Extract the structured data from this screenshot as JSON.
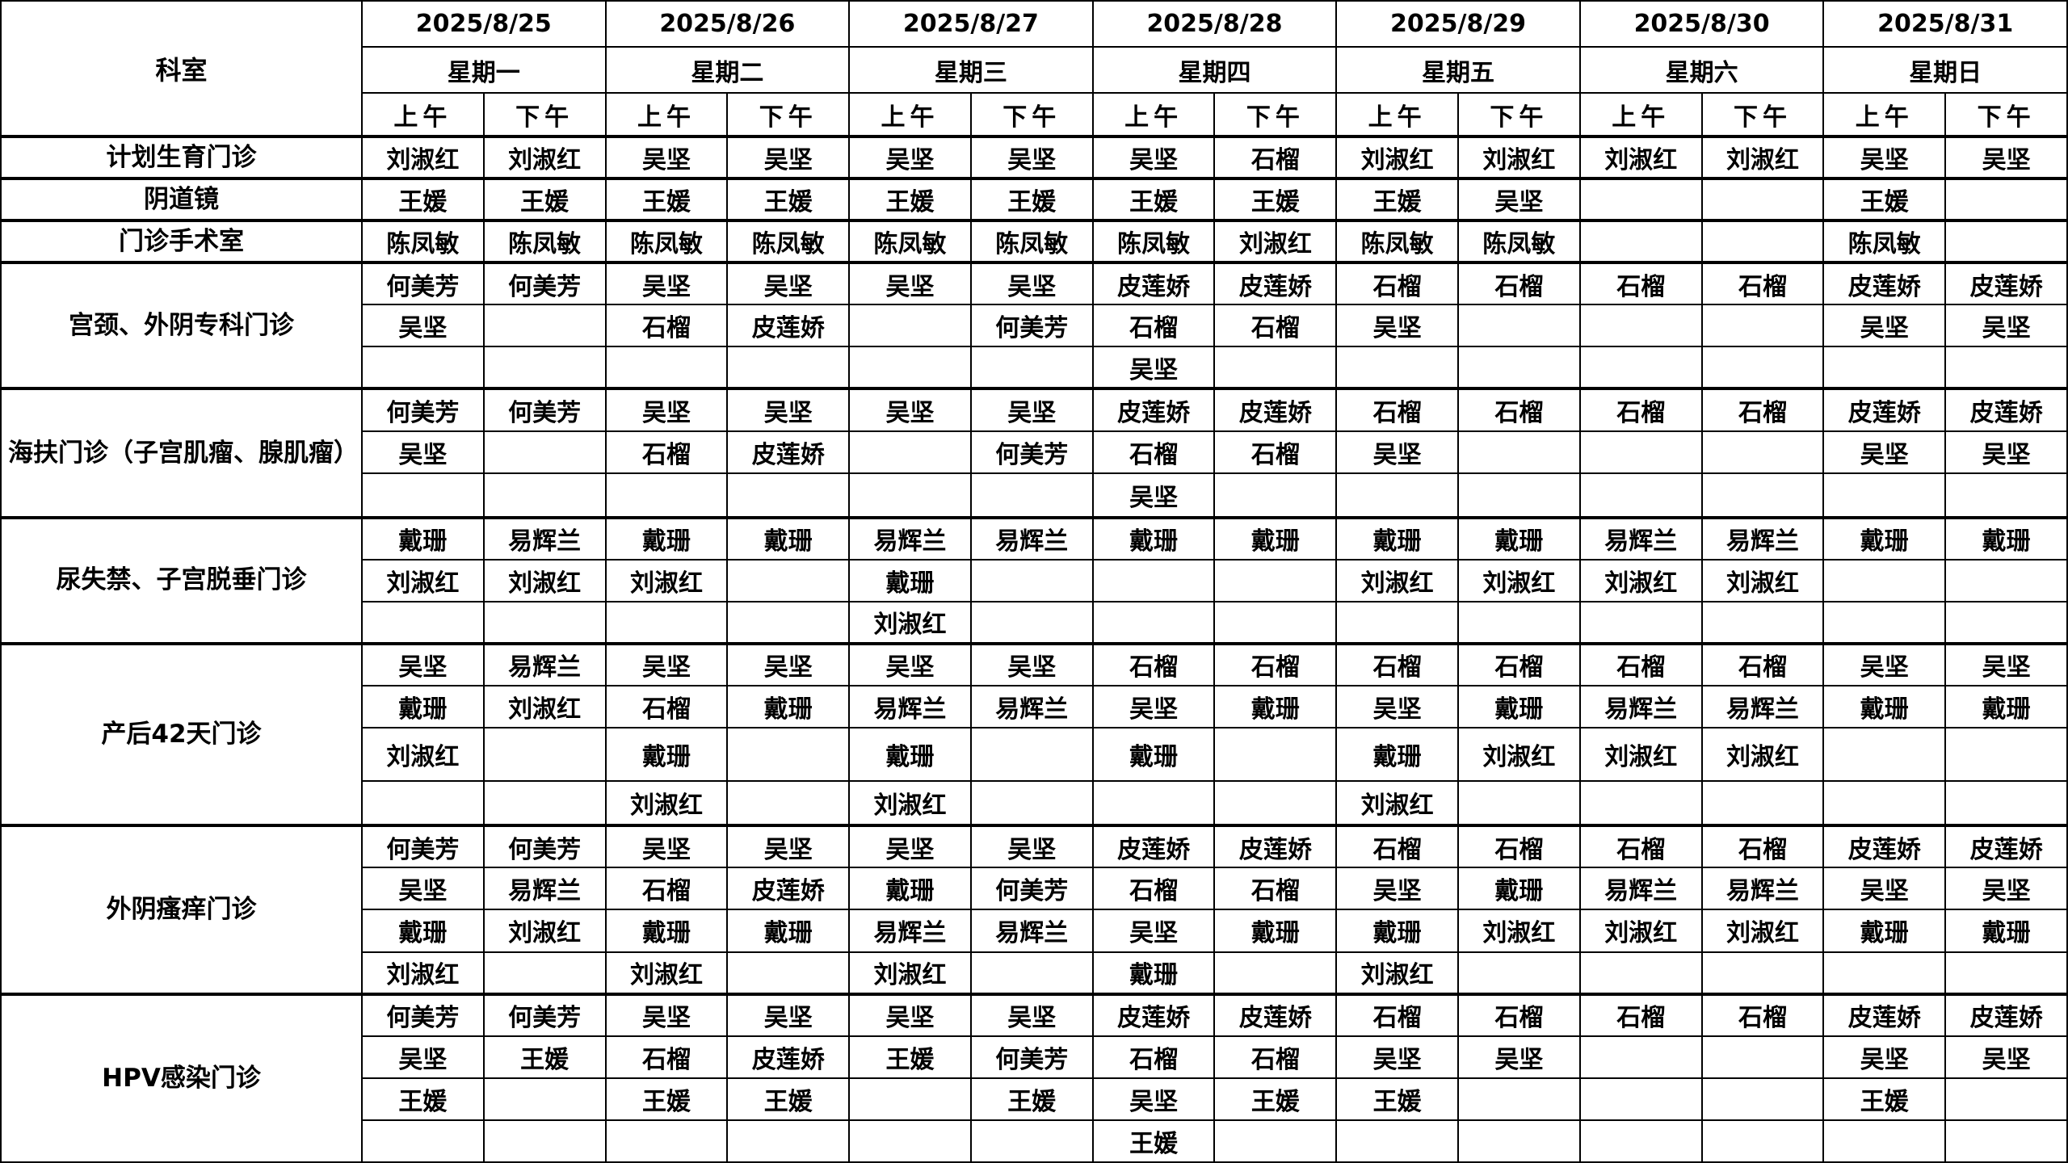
{
  "header": {
    "dept_label": "科室",
    "dates": [
      "2025/8/25",
      "2025/8/26",
      "2025/8/27",
      "2025/8/28",
      "2025/8/29",
      "2025/8/30",
      "2025/8/31"
    ],
    "weekdays": [
      "星期一",
      "星期二",
      "星期三",
      "星期四",
      "星期五",
      "星期六",
      "星期日"
    ],
    "am": "上午",
    "pm": "下午"
  },
  "departments": [
    {
      "name": "计划生育门诊",
      "rows": [
        [
          "刘淑红",
          "刘淑红",
          "吴坚",
          "吴坚",
          "吴坚",
          "吴坚",
          "吴坚",
          "石榴",
          "刘淑红",
          "刘淑红",
          "刘淑红",
          "刘淑红",
          "吴坚",
          "吴坚"
        ]
      ]
    },
    {
      "name": "阴道镜",
      "rows": [
        [
          "王媛",
          "王媛",
          "王媛",
          "王媛",
          "王媛",
          "王媛",
          "王媛",
          "王媛",
          "王媛",
          "吴坚",
          "",
          "",
          "王媛",
          ""
        ]
      ]
    },
    {
      "name": "门诊手术室",
      "rows": [
        [
          "陈凤敏",
          "陈凤敏",
          "陈凤敏",
          "陈凤敏",
          "陈凤敏",
          "陈凤敏",
          "陈凤敏",
          "刘淑红",
          "陈凤敏",
          "陈凤敏",
          "",
          "",
          "陈凤敏",
          ""
        ]
      ]
    },
    {
      "name": "宫颈、外阴专科门诊",
      "rows": [
        [
          "何美芳",
          "何美芳",
          "吴坚",
          "吴坚",
          "吴坚",
          "吴坚",
          "皮莲娇",
          "皮莲娇",
          "石榴",
          "石榴",
          "石榴",
          "石榴",
          "皮莲娇",
          "皮莲娇"
        ],
        [
          "吴坚",
          "",
          "石榴",
          "皮莲娇",
          "",
          "何美芳",
          "石榴",
          "石榴",
          "吴坚",
          "",
          "",
          "",
          "吴坚",
          "吴坚"
        ],
        [
          "",
          "",
          "",
          "",
          "",
          "",
          "吴坚",
          "",
          "",
          "",
          "",
          "",
          "",
          ""
        ]
      ]
    },
    {
      "name": "海扶门诊（子宫肌瘤、腺肌瘤）",
      "rows": [
        [
          "何美芳",
          "何美芳",
          "吴坚",
          "吴坚",
          "吴坚",
          "吴坚",
          "皮莲娇",
          "皮莲娇",
          "石榴",
          "石榴",
          "石榴",
          "石榴",
          "皮莲娇",
          "皮莲娇"
        ],
        [
          "吴坚",
          "",
          "石榴",
          "皮莲娇",
          "",
          "何美芳",
          "石榴",
          "石榴",
          "吴坚",
          "",
          "",
          "",
          "吴坚",
          "吴坚"
        ],
        [
          "",
          "",
          "",
          "",
          "",
          "",
          "吴坚",
          "",
          "",
          "",
          "",
          "",
          "",
          ""
        ]
      ]
    },
    {
      "name": "尿失禁、子宫脱垂门诊",
      "rows": [
        [
          "戴珊",
          "易辉兰",
          "戴珊",
          "戴珊",
          "易辉兰",
          "易辉兰",
          "戴珊",
          "戴珊",
          "戴珊",
          "戴珊",
          "易辉兰",
          "易辉兰",
          "戴珊",
          "戴珊"
        ],
        [
          "刘淑红",
          "刘淑红",
          "刘淑红",
          "",
          "戴珊",
          "",
          "",
          "",
          "刘淑红",
          "刘淑红",
          "刘淑红",
          "刘淑红",
          "",
          ""
        ],
        [
          "",
          "",
          "",
          "",
          "刘淑红",
          "",
          "",
          "",
          "",
          "",
          "",
          "",
          "",
          ""
        ]
      ]
    },
    {
      "name": "产后42天门诊",
      "rows": [
        [
          "吴坚",
          "易辉兰",
          "吴坚",
          "吴坚",
          "吴坚",
          "吴坚",
          "石榴",
          "石榴",
          "石榴",
          "石榴",
          "石榴",
          "石榴",
          "吴坚",
          "吴坚"
        ],
        [
          "戴珊",
          "刘淑红",
          "石榴",
          "戴珊",
          "易辉兰",
          "易辉兰",
          "吴坚",
          "戴珊",
          "吴坚",
          "戴珊",
          "易辉兰",
          "易辉兰",
          "戴珊",
          "戴珊"
        ],
        [
          "刘淑红",
          "",
          "戴珊",
          "",
          "戴珊",
          "",
          "戴珊",
          "",
          "戴珊",
          "刘淑红",
          "刘淑红",
          "刘淑红",
          "",
          ""
        ],
        [
          "",
          "",
          "刘淑红",
          "",
          "刘淑红",
          "",
          "",
          "",
          "刘淑红",
          "",
          "",
          "",
          "",
          ""
        ]
      ]
    },
    {
      "name": "外阴瘙痒门诊",
      "rows": [
        [
          "何美芳",
          "何美芳",
          "吴坚",
          "吴坚",
          "吴坚",
          "吴坚",
          "皮莲娇",
          "皮莲娇",
          "石榴",
          "石榴",
          "石榴",
          "石榴",
          "皮莲娇",
          "皮莲娇"
        ],
        [
          "吴坚",
          "易辉兰",
          "石榴",
          "皮莲娇",
          "戴珊",
          "何美芳",
          "石榴",
          "石榴",
          "吴坚",
          "戴珊",
          "易辉兰",
          "易辉兰",
          "吴坚",
          "吴坚"
        ],
        [
          "戴珊",
          "刘淑红",
          "戴珊",
          "戴珊",
          "易辉兰",
          "易辉兰",
          "吴坚",
          "戴珊",
          "戴珊",
          "刘淑红",
          "刘淑红",
          "刘淑红",
          "戴珊",
          "戴珊"
        ],
        [
          "刘淑红",
          "",
          "刘淑红",
          "",
          "刘淑红",
          "",
          "戴珊",
          "",
          "刘淑红",
          "",
          "",
          "",
          "",
          ""
        ]
      ]
    },
    {
      "name": "HPV感染门诊",
      "rows": [
        [
          "何美芳",
          "何美芳",
          "吴坚",
          "吴坚",
          "吴坚",
          "吴坚",
          "皮莲娇",
          "皮莲娇",
          "石榴",
          "石榴",
          "石榴",
          "石榴",
          "皮莲娇",
          "皮莲娇"
        ],
        [
          "吴坚",
          "王媛",
          "石榴",
          "皮莲娇",
          "王媛",
          "何美芳",
          "石榴",
          "石榴",
          "吴坚",
          "吴坚",
          "",
          "",
          "吴坚",
          "吴坚"
        ],
        [
          "王媛",
          "",
          "王媛",
          "王媛",
          "",
          "王媛",
          "吴坚",
          "王媛",
          "王媛",
          "",
          "",
          "",
          "王媛",
          ""
        ],
        [
          "",
          "",
          "",
          "",
          "",
          "",
          "王媛",
          "",
          "",
          "",
          "",
          "",
          "",
          ""
        ]
      ]
    }
  ]
}
